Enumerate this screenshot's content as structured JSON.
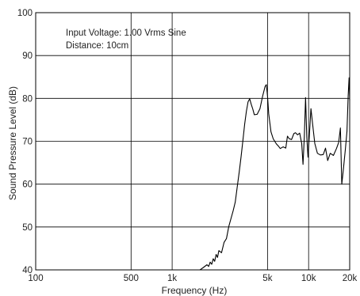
{
  "chart_data": {
    "type": "line",
    "title": "",
    "xlabel": "Frequency (Hz)",
    "ylabel": "Sound Pressure Level (dB)",
    "x_scale": "log",
    "xlim": [
      100,
      20000
    ],
    "ylim": [
      40,
      100
    ],
    "grid": true,
    "annotations": [
      "Input Voltage: 1.00 Vrms Sine",
      "Distance: 10cm"
    ],
    "x_ticks": [
      {
        "value": 100,
        "label": "100"
      },
      {
        "value": 500,
        "label": "500"
      },
      {
        "value": 1000,
        "label": "1k"
      },
      {
        "value": 5000,
        "label": "5k"
      },
      {
        "value": 10000,
        "label": "10k"
      },
      {
        "value": 20000,
        "label": "20k"
      }
    ],
    "y_ticks": [
      40,
      50,
      60,
      70,
      80,
      90,
      100
    ],
    "series": [
      {
        "values": [
          [
            1600,
            40
          ],
          [
            1700,
            40.6
          ],
          [
            1800,
            41.2
          ],
          [
            1850,
            40.8
          ],
          [
            1900,
            41.8
          ],
          [
            1950,
            41.3
          ],
          [
            2000,
            42.6
          ],
          [
            2050,
            42.0
          ],
          [
            2100,
            43.6
          ],
          [
            2150,
            42.9
          ],
          [
            2200,
            44.5
          ],
          [
            2300,
            44.0
          ],
          [
            2400,
            46.4
          ],
          [
            2500,
            47.3
          ],
          [
            2600,
            50.1
          ],
          [
            2700,
            52.0
          ],
          [
            2800,
            53.8
          ],
          [
            2900,
            55.8
          ],
          [
            3000,
            59.4
          ],
          [
            3100,
            62.8
          ],
          [
            3200,
            66.4
          ],
          [
            3300,
            70.2
          ],
          [
            3400,
            74.0
          ],
          [
            3500,
            77.0
          ],
          [
            3600,
            79.2
          ],
          [
            3700,
            79.9
          ],
          [
            3800,
            78.6
          ],
          [
            3900,
            77.5
          ],
          [
            4000,
            76.2
          ],
          [
            4200,
            76.3
          ],
          [
            4400,
            77.6
          ],
          [
            4600,
            80.5
          ],
          [
            4800,
            82.8
          ],
          [
            4900,
            83.2
          ],
          [
            5000,
            80.5
          ],
          [
            5100,
            76.4
          ],
          [
            5300,
            72.2
          ],
          [
            5500,
            70.6
          ],
          [
            5800,
            69.4
          ],
          [
            6000,
            68.9
          ],
          [
            6200,
            68.3
          ],
          [
            6500,
            68.7
          ],
          [
            6800,
            68.4
          ],
          [
            7000,
            71.2
          ],
          [
            7200,
            70.6
          ],
          [
            7500,
            70.4
          ],
          [
            7800,
            71.8
          ],
          [
            8000,
            72.0
          ],
          [
            8300,
            71.5
          ],
          [
            8600,
            71.9
          ],
          [
            8900,
            69.5
          ],
          [
            9100,
            64.6
          ],
          [
            9300,
            71.0
          ],
          [
            9500,
            80.2
          ],
          [
            9700,
            71.0
          ],
          [
            9900,
            66.3
          ],
          [
            10100,
            70.8
          ],
          [
            10400,
            77.6
          ],
          [
            10700,
            74.0
          ],
          [
            11100,
            69.5
          ],
          [
            11600,
            67.2
          ],
          [
            12200,
            66.8
          ],
          [
            12800,
            66.9
          ],
          [
            13300,
            68.4
          ],
          [
            13800,
            65.5
          ],
          [
            14400,
            67.2
          ],
          [
            15200,
            66.7
          ],
          [
            16000,
            68.3
          ],
          [
            16600,
            69.7
          ],
          [
            17100,
            73.1
          ],
          [
            17500,
            60.0
          ],
          [
            18000,
            63.6
          ],
          [
            18600,
            68.2
          ],
          [
            19100,
            72.3
          ],
          [
            19500,
            80.7
          ],
          [
            19800,
            84.8
          ],
          [
            20000,
            79.6
          ]
        ]
      }
    ]
  }
}
